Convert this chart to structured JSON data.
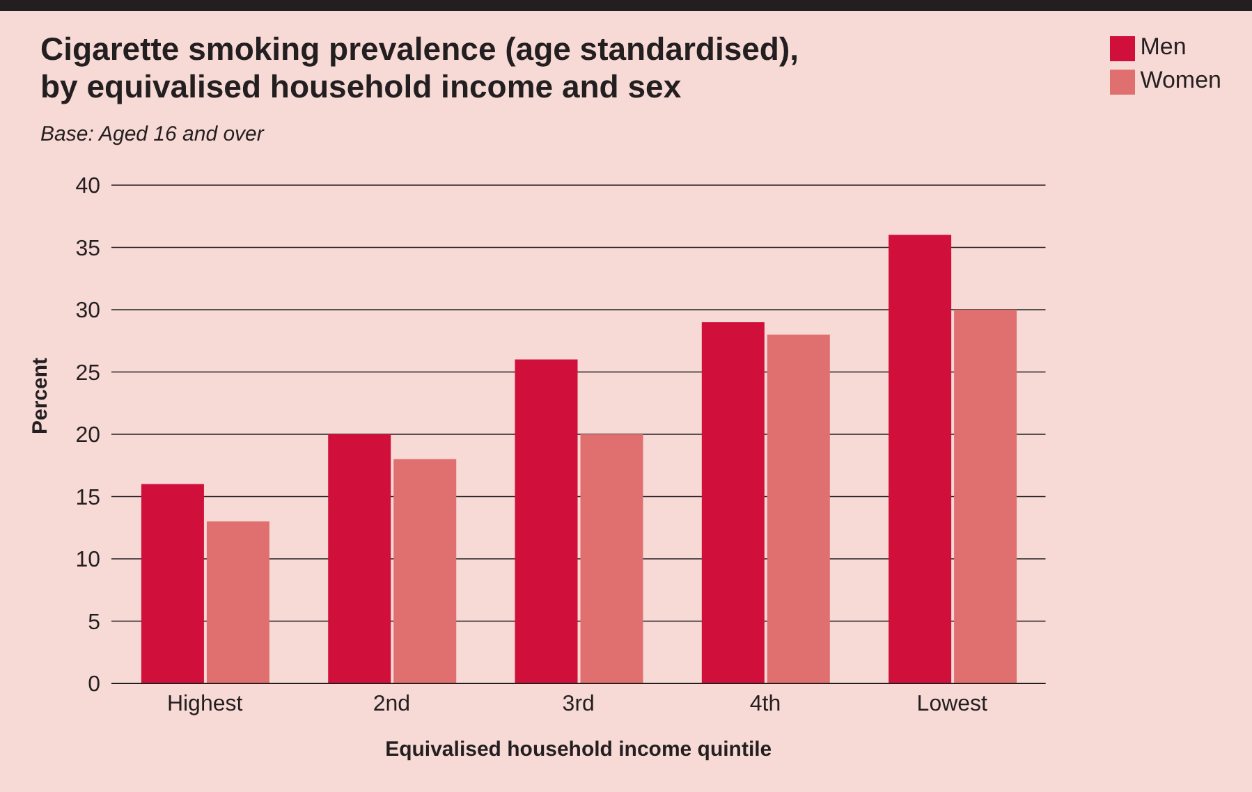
{
  "chart_data": {
    "type": "bar",
    "title": "Cigarette smoking prevalence (age standardised),\nby equivalised household income and sex",
    "subtitle": "Base: Aged 16 and over",
    "xlabel": "Equivalised household income quintile",
    "ylabel": "Percent",
    "categories": [
      "Highest",
      "2nd",
      "3rd",
      "4th",
      "Lowest"
    ],
    "series": [
      {
        "name": "Men",
        "color": "#d0103a",
        "values": [
          16,
          20,
          26,
          29,
          36
        ]
      },
      {
        "name": "Women",
        "color": "#e07070",
        "values": [
          13,
          18,
          20,
          28,
          30
        ]
      }
    ],
    "ylim": [
      0,
      40
    ],
    "yticks": [
      0,
      5,
      10,
      15,
      20,
      25,
      30,
      35,
      40
    ],
    "grid": "y",
    "legend": "top right"
  }
}
